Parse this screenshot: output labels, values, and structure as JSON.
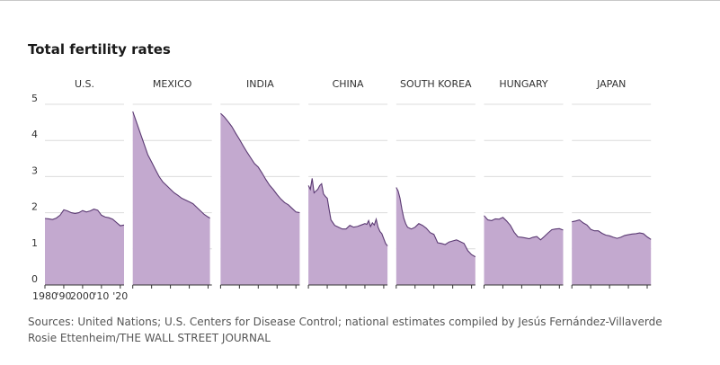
{
  "title": "Total fertility rates",
  "source": "Sources: United Nations; U.S. Centers for Disease Control; national estimates compiled by Jesús Fernández-Villaverde",
  "credit": "Rosie Ettenheim/THE WALL STREET JOURNAL",
  "colors": {
    "fill": "#c3a9cf",
    "stroke": "#5b3a73",
    "grid": "#dcdcdc",
    "axis": "#333333",
    "text": "#333333"
  },
  "chart_data": {
    "type": "area",
    "ylim": [
      0,
      5
    ],
    "yticks": [
      0,
      1,
      2,
      3,
      4,
      5
    ],
    "xlim": [
      1980,
      2022
    ],
    "xticks": [
      1980,
      1990,
      2000,
      2010,
      2020
    ],
    "xtick_labels": [
      "1980",
      "'90",
      "2000",
      "'10",
      "'20"
    ],
    "grid": true,
    "panels": [
      {
        "name": "U.S.",
        "x": [
          1980,
          1982,
          1984,
          1986,
          1988,
          1990,
          1992,
          1994,
          1996,
          1998,
          2000,
          2002,
          2004,
          2006,
          2008,
          2010,
          2012,
          2014,
          2016,
          2018,
          2020,
          2022
        ],
        "values": [
          1.84,
          1.83,
          1.81,
          1.85,
          1.93,
          2.08,
          2.05,
          2.0,
          1.98,
          2.0,
          2.06,
          2.02,
          2.05,
          2.1,
          2.07,
          1.93,
          1.88,
          1.86,
          1.82,
          1.73,
          1.64,
          1.66
        ]
      },
      {
        "name": "MEXICO",
        "x": [
          1980,
          1982,
          1984,
          1986,
          1988,
          1990,
          1992,
          1994,
          1996,
          1998,
          2000,
          2002,
          2004,
          2006,
          2008,
          2010,
          2012,
          2014,
          2016,
          2018,
          2020,
          2021
        ],
        "values": [
          4.8,
          4.5,
          4.2,
          3.9,
          3.6,
          3.4,
          3.2,
          3.0,
          2.85,
          2.75,
          2.65,
          2.55,
          2.48,
          2.4,
          2.35,
          2.3,
          2.25,
          2.15,
          2.05,
          1.95,
          1.88,
          1.85
        ]
      },
      {
        "name": "INDIA",
        "x": [
          1980,
          1982,
          1984,
          1986,
          1988,
          1990,
          1992,
          1994,
          1996,
          1998,
          2000,
          2002,
          2004,
          2006,
          2008,
          2010,
          2012,
          2014,
          2016,
          2018,
          2020,
          2022
        ],
        "values": [
          4.75,
          4.65,
          4.52,
          4.38,
          4.2,
          4.03,
          3.85,
          3.68,
          3.52,
          3.36,
          3.26,
          3.1,
          2.92,
          2.76,
          2.64,
          2.5,
          2.38,
          2.28,
          2.22,
          2.12,
          2.02,
          2.0
        ]
      },
      {
        "name": "CHINA",
        "x": [
          1980,
          1981,
          1982,
          1983,
          1984,
          1985,
          1986,
          1987,
          1988,
          1989,
          1990,
          1991,
          1992,
          1994,
          1996,
          1998,
          2000,
          2002,
          2004,
          2006,
          2008,
          2010,
          2011,
          2012,
          2013,
          2014,
          2015,
          2016,
          2017,
          2018,
          2019,
          2020,
          2021,
          2022
        ],
        "values": [
          2.75,
          2.65,
          2.95,
          2.55,
          2.6,
          2.65,
          2.75,
          2.8,
          2.52,
          2.45,
          2.4,
          2.1,
          1.8,
          1.65,
          1.6,
          1.55,
          1.55,
          1.65,
          1.6,
          1.62,
          1.66,
          1.7,
          1.68,
          1.78,
          1.62,
          1.72,
          1.66,
          1.82,
          1.6,
          1.48,
          1.42,
          1.28,
          1.15,
          1.08
        ]
      },
      {
        "name": "SOUTH KOREA",
        "x": [
          1980,
          1981,
          1982,
          1983,
          1984,
          1985,
          1986,
          1988,
          1990,
          1992,
          1994,
          1996,
          1998,
          2000,
          2002,
          2004,
          2006,
          2008,
          2010,
          2012,
          2014,
          2016,
          2018,
          2020,
          2022
        ],
        "values": [
          2.7,
          2.6,
          2.4,
          2.1,
          1.85,
          1.7,
          1.6,
          1.55,
          1.6,
          1.7,
          1.65,
          1.57,
          1.45,
          1.4,
          1.17,
          1.15,
          1.12,
          1.19,
          1.22,
          1.25,
          1.2,
          1.15,
          0.95,
          0.84,
          0.78
        ]
      },
      {
        "name": "HUNGARY",
        "x": [
          1980,
          1982,
          1984,
          1986,
          1988,
          1990,
          1992,
          1994,
          1996,
          1998,
          2000,
          2002,
          2004,
          2006,
          2008,
          2010,
          2012,
          2014,
          2016,
          2018,
          2020,
          2022
        ],
        "values": [
          1.92,
          1.8,
          1.78,
          1.83,
          1.82,
          1.87,
          1.77,
          1.65,
          1.46,
          1.33,
          1.32,
          1.3,
          1.28,
          1.32,
          1.34,
          1.25,
          1.34,
          1.44,
          1.53,
          1.55,
          1.56,
          1.52
        ]
      },
      {
        "name": "JAPAN",
        "x": [
          1980,
          1982,
          1984,
          1986,
          1988,
          1990,
          1992,
          1994,
          1996,
          1998,
          2000,
          2002,
          2004,
          2006,
          2008,
          2010,
          2012,
          2014,
          2016,
          2018,
          2020,
          2022
        ],
        "values": [
          1.75,
          1.77,
          1.8,
          1.72,
          1.66,
          1.54,
          1.5,
          1.5,
          1.43,
          1.38,
          1.36,
          1.32,
          1.29,
          1.32,
          1.37,
          1.39,
          1.41,
          1.42,
          1.44,
          1.42,
          1.33,
          1.26
        ]
      }
    ]
  }
}
